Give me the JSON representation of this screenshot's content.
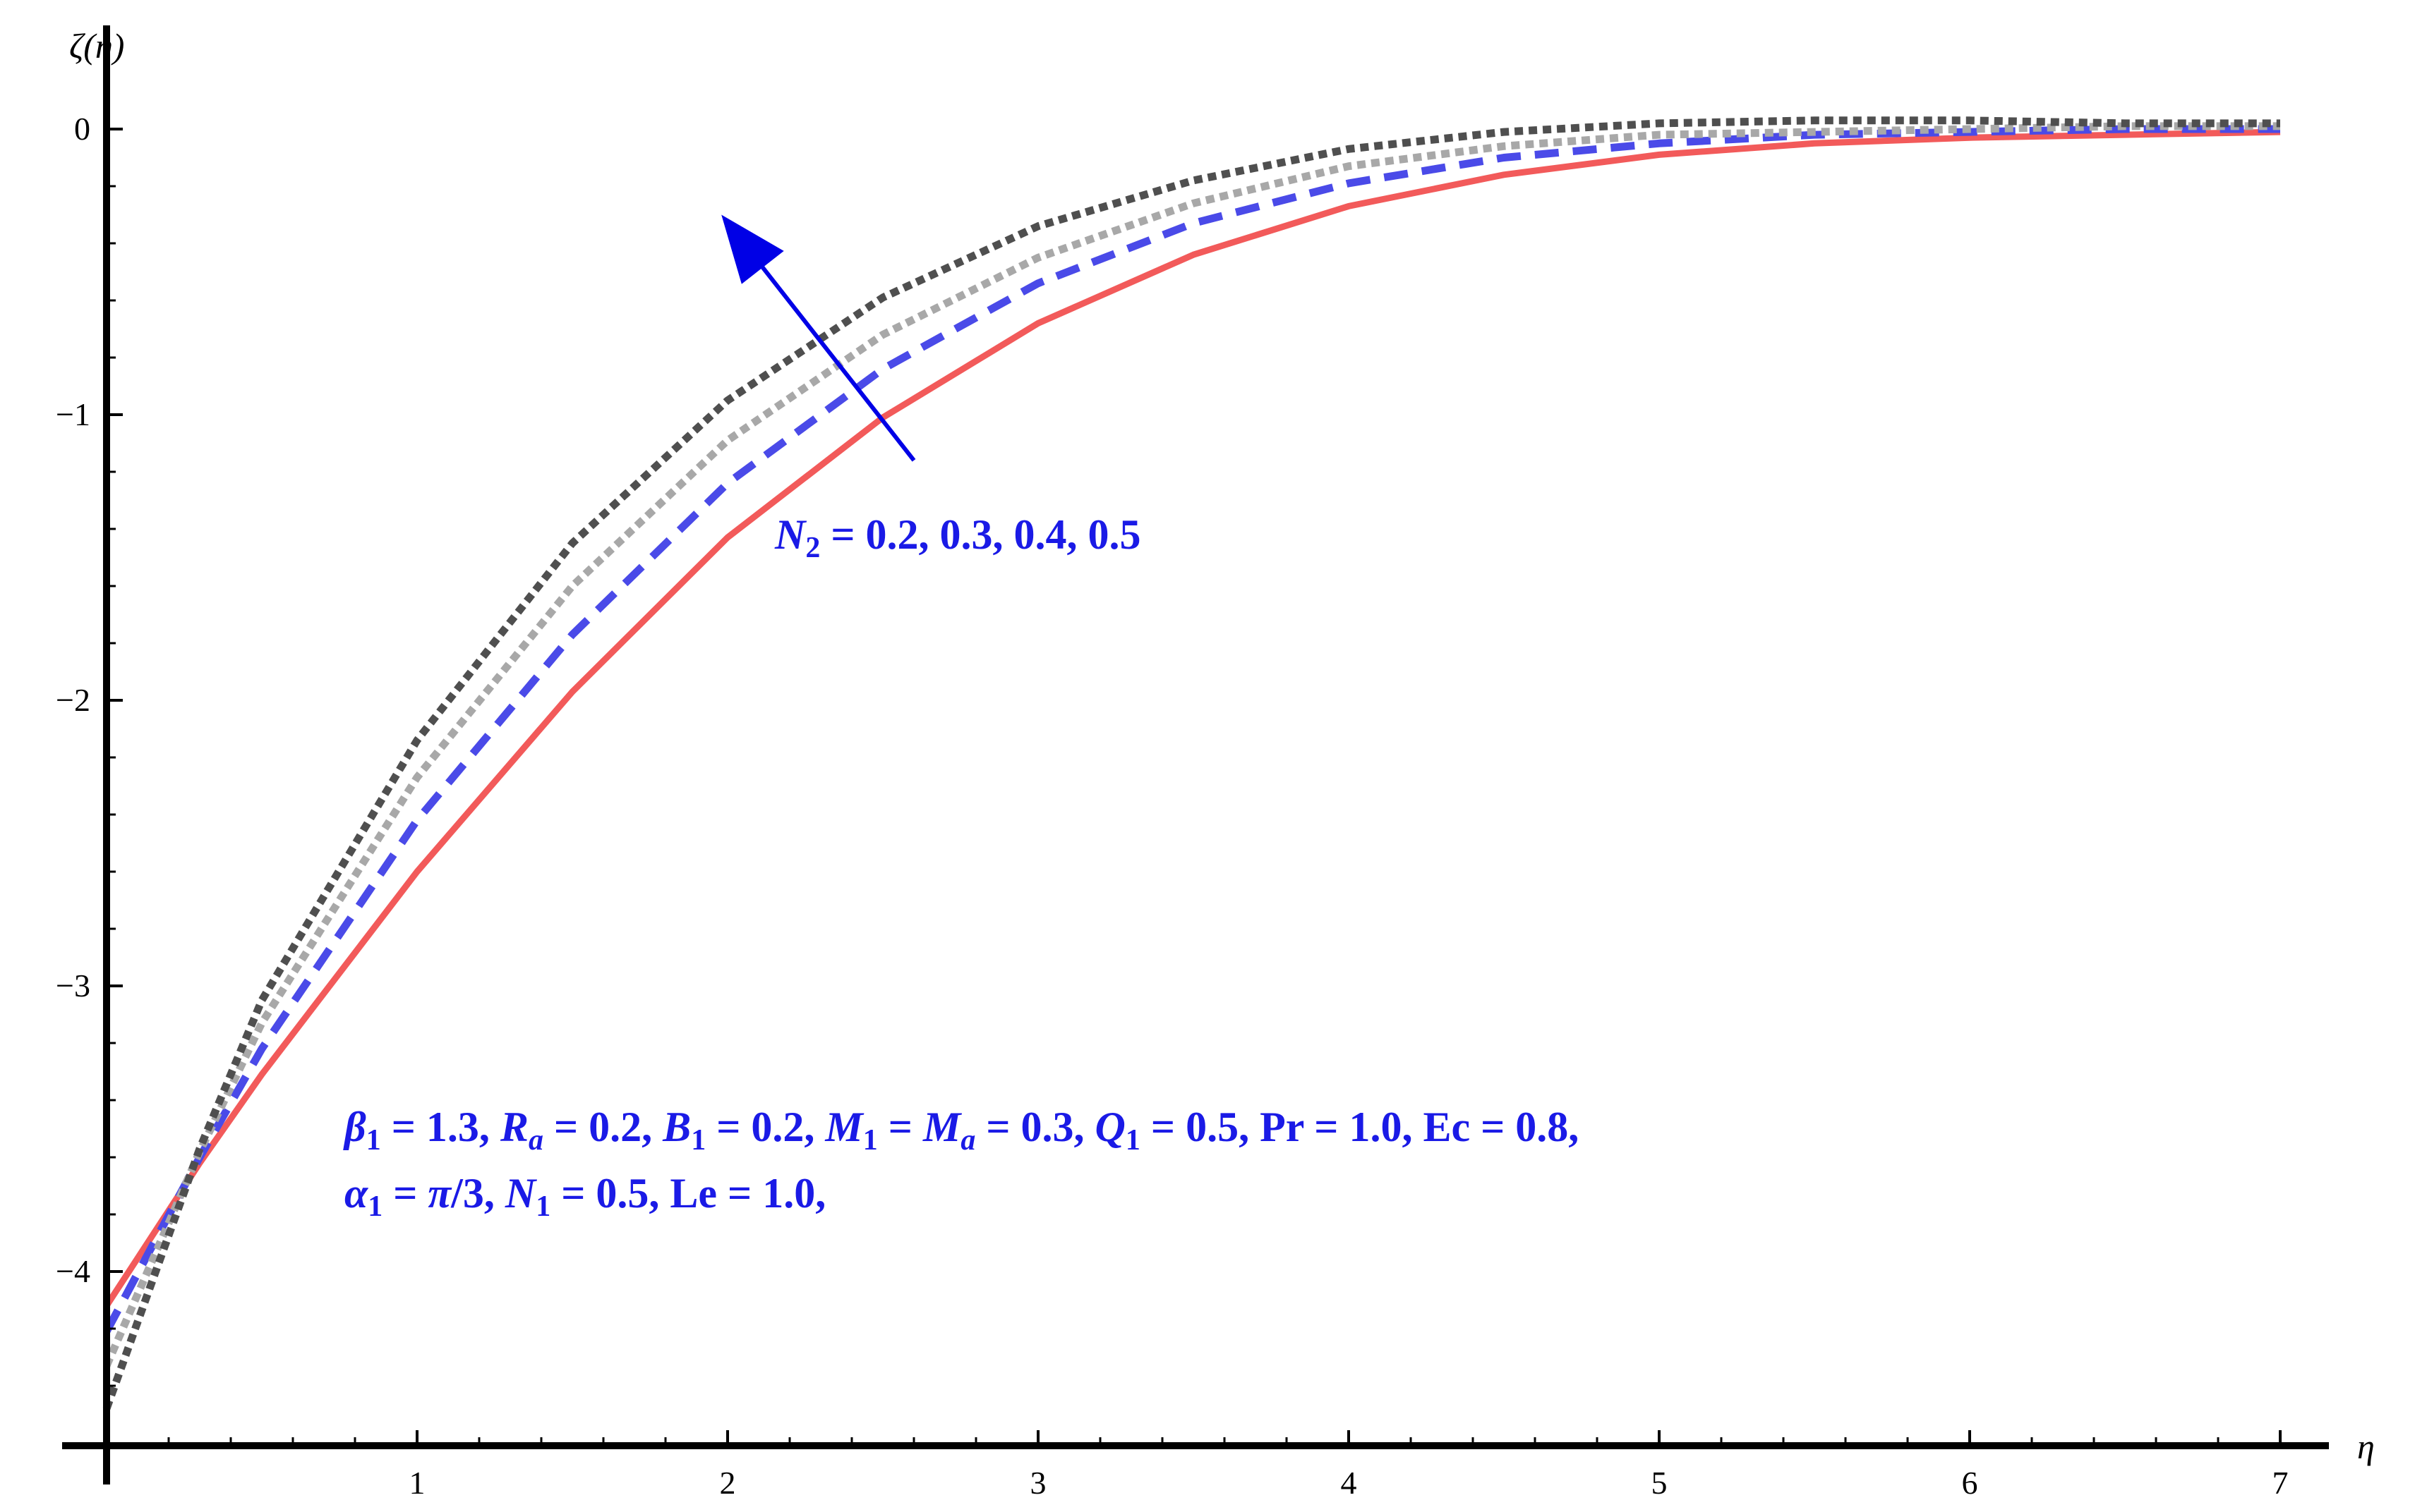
{
  "chart_data": {
    "type": "line",
    "xlabel": "η",
    "ylabel": "ζ(η)",
    "xlim": [
      0,
      7.15
    ],
    "ylim": [
      -4.6,
      0.16
    ],
    "x_ticks": [
      {
        "v": 1,
        "label": "1"
      },
      {
        "v": 2,
        "label": "2"
      },
      {
        "v": 3,
        "label": "3"
      },
      {
        "v": 4,
        "label": "4"
      },
      {
        "v": 5,
        "label": "5"
      },
      {
        "v": 6,
        "label": "6"
      },
      {
        "v": 7,
        "label": "7"
      }
    ],
    "y_ticks": [
      {
        "v": 0,
        "label": "0"
      },
      {
        "v": -1,
        "label": "−1"
      },
      {
        "v": -2,
        "label": "−2"
      },
      {
        "v": -3,
        "label": "−3"
      },
      {
        "v": -4,
        "label": "−4"
      }
    ],
    "grid": false,
    "series": [
      {
        "name": "N2 = 0.2",
        "color": "#f25a5a",
        "style": "solid",
        "x": [
          0,
          0.3,
          0.5,
          1,
          1.5,
          2,
          2.5,
          3,
          3.5,
          4,
          4.5,
          5,
          5.5,
          6,
          6.5,
          7
        ],
        "y": [
          -4.12,
          -3.62,
          -3.31,
          -2.6,
          -1.97,
          -1.43,
          -1.01,
          -0.68,
          -0.44,
          -0.27,
          -0.16,
          -0.09,
          -0.05,
          -0.03,
          -0.02,
          -0.01
        ]
      },
      {
        "name": "N2 = 0.3",
        "color": "#4a4ae8",
        "style": "dashed",
        "x": [
          0,
          0.3,
          0.5,
          1,
          1.5,
          2,
          2.5,
          3,
          3.5,
          4,
          4.5,
          5,
          5.5,
          6,
          6.5,
          7
        ],
        "y": [
          -4.21,
          -3.6,
          -3.22,
          -2.42,
          -1.77,
          -1.24,
          -0.84,
          -0.54,
          -0.33,
          -0.19,
          -0.1,
          -0.05,
          -0.02,
          -0.01,
          0.0,
          0.0
        ]
      },
      {
        "name": "N2 = 0.4",
        "color": "#a8a8a8",
        "style": "dotted",
        "x": [
          0,
          0.3,
          0.5,
          1,
          1.5,
          2,
          2.5,
          3,
          3.5,
          4,
          4.5,
          5,
          5.5,
          6,
          6.5,
          7
        ],
        "y": [
          -4.33,
          -3.58,
          -3.13,
          -2.27,
          -1.6,
          -1.09,
          -0.72,
          -0.45,
          -0.26,
          -0.13,
          -0.06,
          -0.02,
          -0.01,
          0.0,
          0.01,
          0.01
        ]
      },
      {
        "name": "N2 = 0.5",
        "color": "#4f4f4f",
        "style": "dotted",
        "x": [
          0,
          0.3,
          0.5,
          1,
          1.5,
          2,
          2.5,
          3,
          3.5,
          4,
          4.5,
          5,
          5.5,
          6,
          6.5,
          7
        ],
        "y": [
          -4.48,
          -3.57,
          -3.05,
          -2.14,
          -1.45,
          -0.95,
          -0.59,
          -0.34,
          -0.18,
          -0.07,
          -0.01,
          0.02,
          0.03,
          0.03,
          0.02,
          0.02
        ]
      }
    ],
    "arrow": {
      "from": [
        2.6,
        -1.16
      ],
      "to": [
        1.98,
        -0.3
      ],
      "color": "#0000e6"
    }
  },
  "annotations": {
    "n2_label": {
      "var": "N",
      "sub": "2",
      "rest": " = 0.2, 0.3, 0.4, 0.5"
    },
    "params_line1": [
      {
        "t": "β",
        "it": true
      },
      {
        "t": "1",
        "sub": true
      },
      {
        "t": " = 1.3,  "
      },
      {
        "t": "R",
        "it": true
      },
      {
        "t": "a",
        "sub": true,
        "it": true
      },
      {
        "t": " = 0.2,  "
      },
      {
        "t": "B",
        "it": true
      },
      {
        "t": "1",
        "sub": true
      },
      {
        "t": " = 0.2, "
      },
      {
        "t": "M",
        "it": true
      },
      {
        "t": "1",
        "sub": true
      },
      {
        "t": " = "
      },
      {
        "t": "M",
        "it": true
      },
      {
        "t": "a",
        "sub": true,
        "it": true
      },
      {
        "t": " = 0.3,  "
      },
      {
        "t": "Q",
        "it": true
      },
      {
        "t": "1",
        "sub": true
      },
      {
        "t": " = 0.5, Pr = 1.0, Ec = 0.8,"
      }
    ],
    "params_line2": [
      {
        "t": " "
      },
      {
        "t": "α",
        "it": true
      },
      {
        "t": "1",
        "sub": true
      },
      {
        "t": " = "
      },
      {
        "t": "π",
        "it": true
      },
      {
        "t": "/3, "
      },
      {
        "t": "N",
        "it": true
      },
      {
        "t": "1",
        "sub": true
      },
      {
        "t": " = 0.5, Le = 1.0,"
      }
    ]
  }
}
